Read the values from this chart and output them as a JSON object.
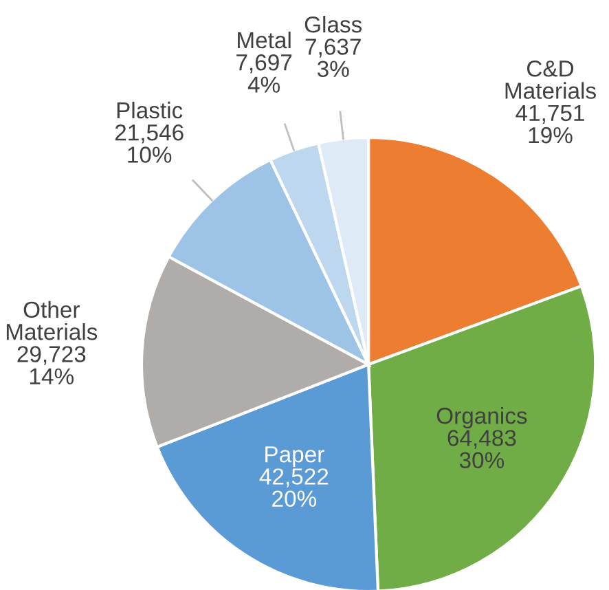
{
  "chart_data": {
    "type": "pie",
    "categories": [
      "C&D Materials",
      "Organics",
      "Paper",
      "Other Materials",
      "Plastic",
      "Metal",
      "Glass"
    ],
    "values": [
      41751,
      64483,
      42522,
      29723,
      21546,
      7697,
      7637
    ],
    "value_labels": [
      "41,751\n19%",
      "64,483\n30%",
      "42,522\n20%",
      "29,723\n14%",
      "21,546\n10%",
      "7,697\n4%",
      "7,637\n3%"
    ],
    "colors": [
      "#ed7d31",
      "#70ad47",
      "#5b9bd5",
      "#b0aca9",
      "#9dc3e6",
      "#bdd7ee",
      "#deebf7"
    ]
  }
}
